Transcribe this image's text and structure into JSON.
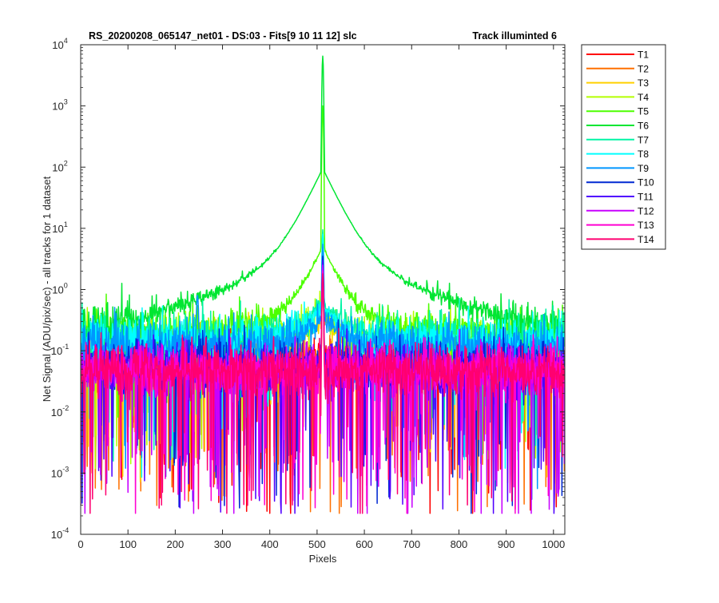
{
  "chart_data": {
    "type": "line",
    "title": "RS_20200208_065147_net01 - DS:03 - Fits[9  10  11  12]   slc",
    "title_right": "Track illuminted 6",
    "xlabel": "Pixels",
    "ylabel": "Net Signal (ADU/pix/sec) - all tracks for 1 dataset",
    "xlim": [
      0,
      1024
    ],
    "ylim": [
      0.0001,
      10000
    ],
    "yscale": "log",
    "x_ticks": [
      "0",
      "100",
      "200",
      "300",
      "400",
      "500",
      "600",
      "700",
      "800",
      "900",
      "1000"
    ],
    "y_ticks": [
      {
        "base": "10",
        "exp": "4"
      },
      {
        "base": "10",
        "exp": "3"
      },
      {
        "base": "10",
        "exp": "2"
      },
      {
        "base": "10",
        "exp": "1"
      },
      {
        "base": "10",
        "exp": "0"
      },
      {
        "base": "10",
        "exp": "-1"
      },
      {
        "base": "10",
        "exp": "-2"
      },
      {
        "base": "10",
        "exp": "-3"
      },
      {
        "base": "10",
        "exp": "-4"
      }
    ],
    "grid": false,
    "legend_position": "outside-right",
    "peak_pixel": 512,
    "series": [
      {
        "name": "T1",
        "color": "#ff0000",
        "baseline": 0.06,
        "peak": 1.6,
        "halo": 0,
        "feature": null
      },
      {
        "name": "T2",
        "color": "#ff7000",
        "baseline": 0.07,
        "peak": 2.0,
        "halo": 0,
        "feature": null
      },
      {
        "name": "T3",
        "color": "#ffd000",
        "baseline": 0.1,
        "peak": 2.5,
        "halo": 0.25,
        "feature": null
      },
      {
        "name": "T4",
        "color": "#b4ff00",
        "baseline": 0.16,
        "peak": 3.0,
        "halo": 0.3,
        "feature": null
      },
      {
        "name": "T5",
        "color": "#4cff00",
        "baseline": 0.18,
        "peak": 1000,
        "halo": 4.5,
        "feature": null
      },
      {
        "name": "T6",
        "color": "#00e632",
        "baseline": 0.2,
        "peak": 6500,
        "halo": 90,
        "feature": null
      },
      {
        "name": "T7",
        "color": "#00f5a5",
        "baseline": 0.17,
        "peak": 9.5,
        "halo": 0.45,
        "feature": null
      },
      {
        "name": "T8",
        "color": "#00ffff",
        "baseline": 0.14,
        "peak": 8.0,
        "halo": 0.35,
        "feature": null
      },
      {
        "name": "T9",
        "color": "#0096ff",
        "baseline": 0.12,
        "peak": 5.5,
        "halo": 0.25,
        "feature": {
          "x": 247,
          "value": 0.8
        }
      },
      {
        "name": "T10",
        "color": "#0028d2",
        "baseline": 0.06,
        "peak": 3.5,
        "halo": 0,
        "feature": null
      },
      {
        "name": "T11",
        "color": "#5000ff",
        "baseline": 0.05,
        "peak": 3.0,
        "halo": 0,
        "feature": null
      },
      {
        "name": "T12",
        "color": "#c800ff",
        "baseline": 0.05,
        "peak": 2.5,
        "halo": 0,
        "feature": null
      },
      {
        "name": "T13",
        "color": "#ff00d2",
        "baseline": 0.05,
        "peak": 2.0,
        "halo": 0,
        "feature": null
      },
      {
        "name": "T14",
        "color": "#ff0070",
        "baseline": 0.05,
        "peak": 1.8,
        "halo": 0,
        "feature": null
      }
    ]
  }
}
